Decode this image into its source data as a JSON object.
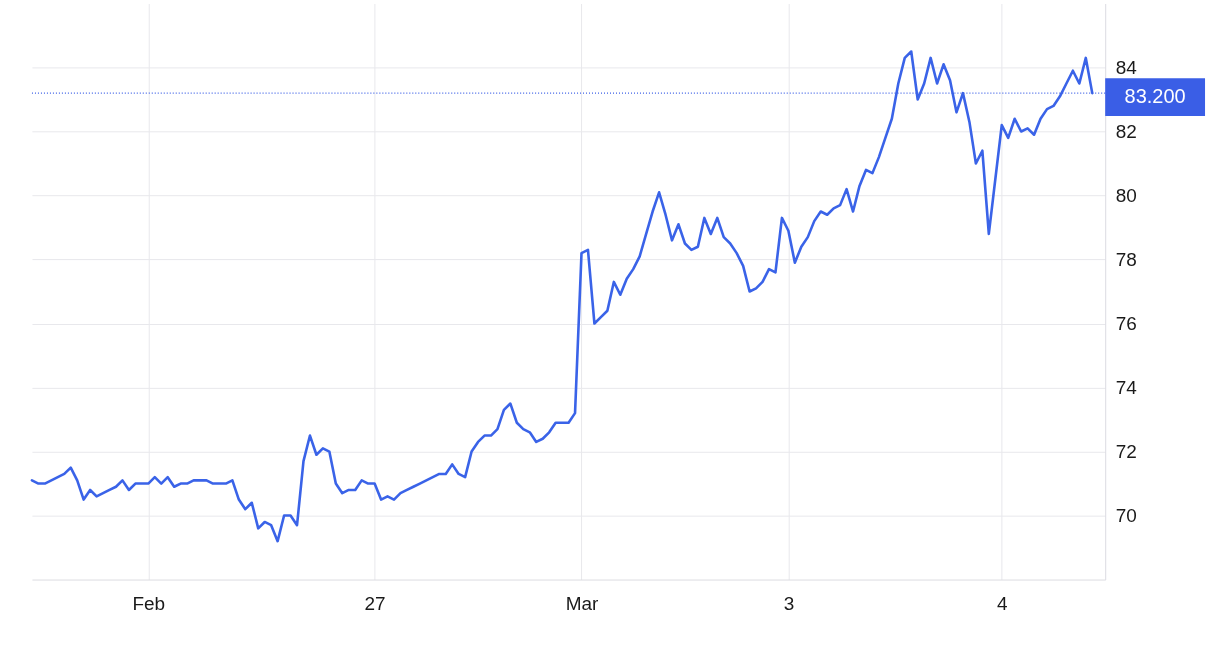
{
  "chart_data": {
    "type": "line",
    "categories": [
      null,
      null,
      null,
      null,
      null,
      null,
      null,
      null,
      null,
      null,
      null,
      null,
      null,
      null,
      null,
      null,
      null,
      null,
      "Feb",
      null,
      null,
      null,
      null,
      null,
      null,
      null,
      null,
      null,
      null,
      null,
      null,
      null,
      null,
      null,
      null,
      null,
      null,
      null,
      null,
      null,
      null,
      null,
      null,
      null,
      null,
      null,
      null,
      null,
      null,
      null,
      null,
      null,
      null,
      "27",
      null,
      null,
      null,
      null,
      null,
      null,
      null,
      null,
      null,
      null,
      null,
      null,
      null,
      null,
      null,
      null,
      null,
      null,
      null,
      null,
      null,
      null,
      null,
      null,
      null,
      null,
      null,
      null,
      null,
      null,
      null,
      "Mar",
      null,
      null,
      null,
      null,
      null,
      null,
      null,
      null,
      null,
      null,
      null,
      null,
      null,
      null,
      null,
      null,
      null,
      null,
      null,
      null,
      null,
      null,
      null,
      null,
      null,
      null,
      null,
      null,
      null,
      null,
      null,
      "3",
      null,
      null,
      null,
      null,
      null,
      null,
      null,
      null,
      null,
      null,
      null,
      null,
      null,
      null,
      null,
      null,
      null,
      null,
      null,
      null,
      null,
      null,
      null,
      null,
      null,
      null,
      null,
      null,
      null,
      null,
      null,
      null,
      "4",
      null,
      null,
      null,
      null,
      null,
      null,
      null,
      null,
      null,
      null,
      null,
      null,
      null,
      null,
      null,
      null
    ],
    "series": [
      {
        "color": "#3a63e8",
        "values": [
          71.1,
          71.0,
          71.0,
          71.1,
          71.2,
          71.3,
          71.5,
          71.1,
          70.5,
          70.8,
          70.6,
          70.7,
          70.8,
          70.9,
          71.1,
          70.8,
          71.0,
          71.0,
          71.0,
          71.2,
          71.0,
          71.2,
          70.9,
          71.0,
          71.0,
          71.1,
          71.1,
          71.1,
          71.0,
          71.0,
          71.0,
          71.1,
          70.5,
          70.2,
          70.4,
          69.6,
          69.8,
          69.7,
          69.2,
          70.0,
          70.0,
          69.7,
          71.7,
          72.5,
          71.9,
          72.1,
          72.0,
          71.0,
          70.7,
          70.8,
          70.8,
          71.1,
          71.0,
          71.0,
          70.5,
          70.6,
          70.5,
          70.7,
          70.8,
          70.9,
          71.0,
          71.1,
          71.2,
          71.3,
          71.3,
          71.6,
          71.3,
          71.2,
          72.0,
          72.3,
          72.5,
          72.5,
          72.7,
          73.3,
          73.5,
          72.9,
          72.7,
          72.6,
          72.3,
          72.4,
          72.6,
          72.9,
          72.9,
          72.9,
          73.2,
          78.2,
          78.3,
          76.0,
          76.2,
          76.4,
          77.3,
          76.9,
          77.4,
          77.7,
          78.1,
          78.8,
          79.5,
          80.1,
          79.4,
          78.6,
          79.1,
          78.5,
          78.3,
          78.4,
          79.3,
          78.8,
          79.3,
          78.7,
          78.5,
          78.2,
          77.8,
          77.0,
          77.1,
          77.3,
          77.7,
          77.6,
          79.3,
          78.9,
          77.9,
          78.4,
          78.7,
          79.2,
          79.5,
          79.4,
          79.6,
          79.7,
          80.2,
          79.5,
          80.3,
          80.8,
          80.7,
          81.2,
          81.8,
          82.4,
          83.5,
          84.3,
          84.5,
          83.0,
          83.5,
          84.3,
          83.5,
          84.1,
          83.6,
          82.6,
          83.2,
          82.3,
          81.0,
          81.4,
          78.8,
          80.5,
          82.2,
          81.8,
          82.4,
          82.0,
          82.1,
          81.9,
          82.4,
          82.7,
          82.8,
          83.1,
          83.5,
          83.9,
          83.5,
          84.3,
          83.2,
          null,
          null
        ]
      }
    ],
    "ylim": [
      68,
      86
    ],
    "yticks": [
      70,
      72,
      74,
      76,
      78,
      80,
      82,
      84
    ],
    "grid": true,
    "line_style": "solid",
    "ref_lines": [
      {
        "axis": "y",
        "value": 83.2,
        "label": "83.200",
        "color": "#3a5ee6",
        "line_style": "dotted"
      }
    ]
  }
}
